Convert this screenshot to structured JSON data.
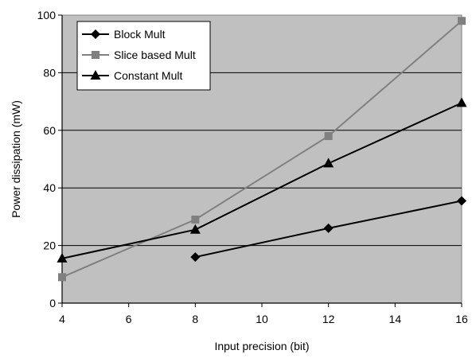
{
  "chart_data": {
    "type": "line",
    "xlabel": "Input precision (bit)",
    "ylabel": "Power dissipation (mW)",
    "xlim": [
      4,
      16
    ],
    "ylim": [
      0,
      100
    ],
    "xticks": [
      4,
      6,
      8,
      10,
      12,
      14,
      16
    ],
    "yticks": [
      0,
      20,
      40,
      60,
      80,
      100
    ],
    "grid": "horizontal",
    "legend_position": "top-left",
    "series": [
      {
        "name": "Block Mult",
        "marker": "diamond",
        "color": "#000000",
        "x": [
          8,
          12,
          16
        ],
        "y": [
          16,
          26,
          35.5
        ]
      },
      {
        "name": "Slice based Mult",
        "marker": "square",
        "color": "#808080",
        "x": [
          4,
          8,
          12,
          16
        ],
        "y": [
          9,
          29,
          58,
          98
        ]
      },
      {
        "name": "Constant Mult",
        "marker": "triangle",
        "color": "#000000",
        "x": [
          4,
          8,
          12,
          16
        ],
        "y": [
          15.5,
          25.5,
          48.5,
          69.5
        ]
      }
    ]
  }
}
